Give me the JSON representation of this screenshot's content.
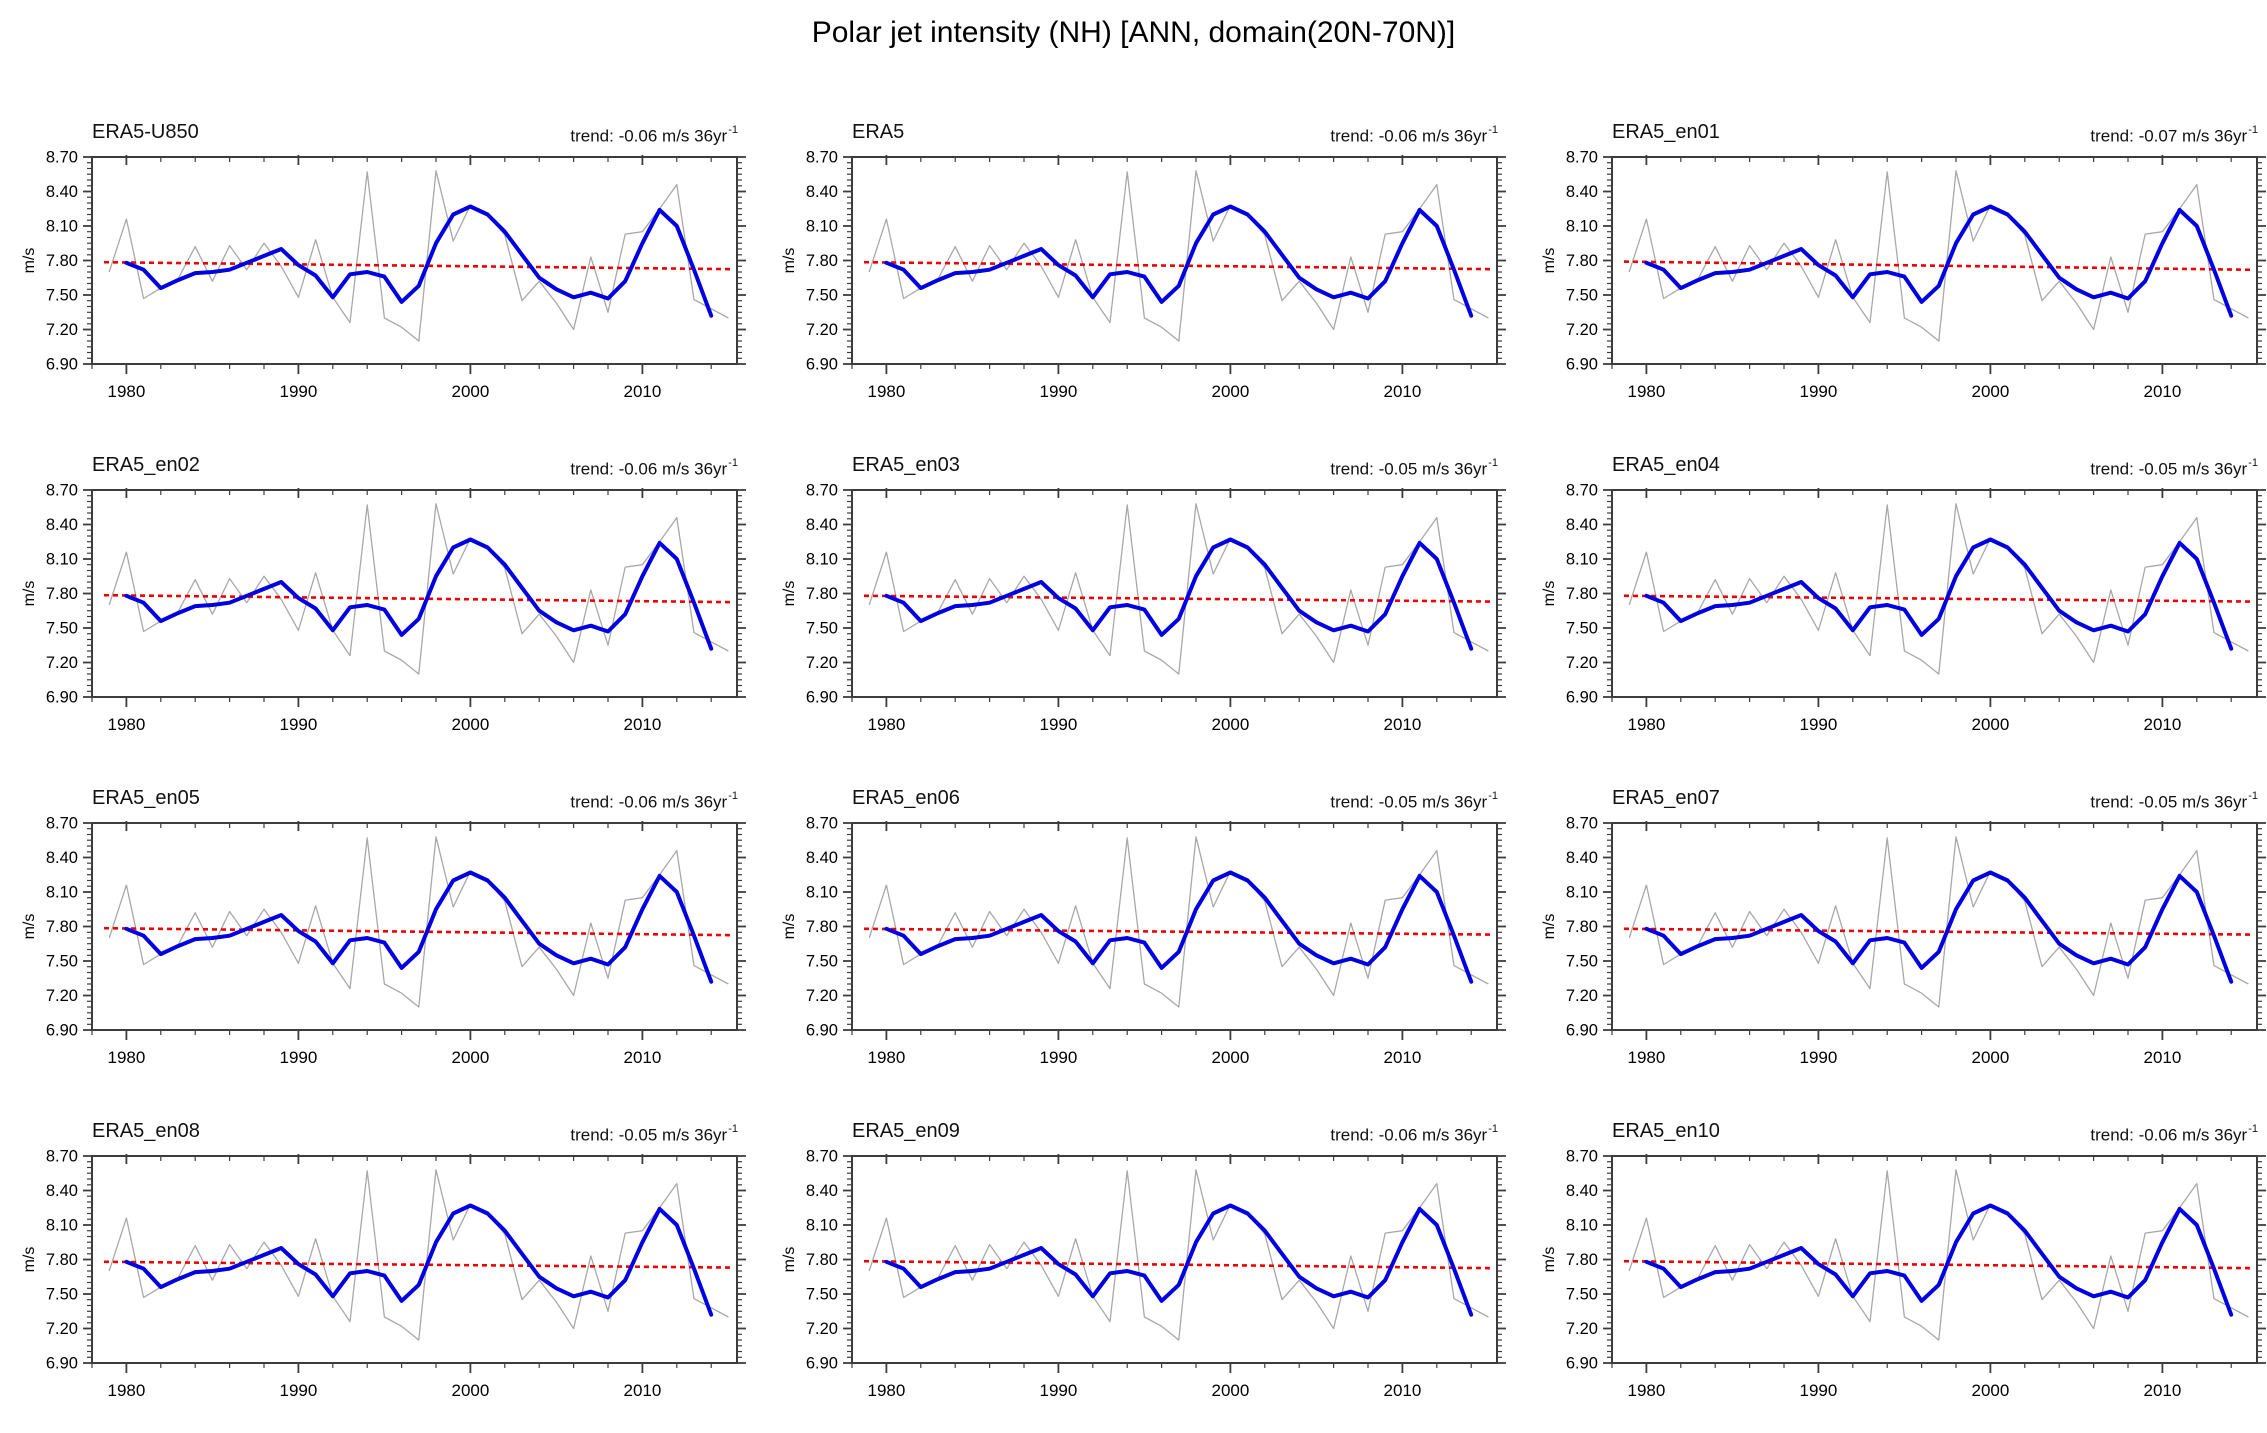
{
  "chart_data": {
    "type": "line",
    "title": "Polar jet intensity (NH) [ANN, domain(20N-70N)]",
    "layout": {
      "rows": 4,
      "cols": 3,
      "grid": "off",
      "legend": "none"
    },
    "trend_sup": "-1",
    "axes": {
      "ylabel": "m/s",
      "ylim": [
        6.9,
        8.7
      ],
      "yticks": [
        6.9,
        7.2,
        7.5,
        7.8,
        8.1,
        8.4,
        8.7
      ],
      "ytick_labels": [
        "6.90",
        "7.20",
        "7.50",
        "7.80",
        "8.10",
        "8.40",
        "8.70"
      ],
      "y_minor_step": 0.05,
      "xlim": [
        1978,
        2015.5
      ],
      "xticks": [
        1980,
        1990,
        2000,
        2010
      ],
      "xtick_labels": [
        "1980",
        "1990",
        "2000",
        "2010"
      ],
      "x_minor_step": 2
    },
    "colors": {
      "annual_line": "#a8a8a8",
      "smoothed_line": "#0000e0",
      "trend_line": "#ee0000",
      "axis": "#3c3c3c",
      "text": "#000000"
    },
    "years": [
      1979,
      1980,
      1981,
      1982,
      1983,
      1984,
      1985,
      1986,
      1987,
      1988,
      1989,
      1990,
      1991,
      1992,
      1993,
      1994,
      1995,
      1996,
      1997,
      1998,
      1999,
      2000,
      2001,
      2002,
      2003,
      2004,
      2005,
      2006,
      2007,
      2008,
      2009,
      2010,
      2011,
      2012,
      2013,
      2014,
      2015
    ],
    "annual": [
      7.7,
      8.16,
      7.47,
      7.56,
      7.64,
      7.92,
      7.62,
      7.93,
      7.72,
      7.95,
      7.75,
      7.48,
      7.98,
      7.48,
      7.26,
      8.57,
      7.3,
      7.22,
      7.1,
      8.58,
      7.97,
      8.28,
      8.2,
      8.02,
      7.45,
      7.62,
      7.43,
      7.2,
      7.83,
      7.35,
      8.03,
      8.05,
      8.25,
      8.46,
      7.46,
      7.38,
      7.3
    ],
    "smoothed_years": [
      1980,
      1981,
      1982,
      1983,
      1984,
      1985,
      1986,
      1987,
      1988,
      1989,
      1990,
      1991,
      1992,
      1993,
      1994,
      1995,
      1996,
      1997,
      1998,
      1999,
      2000,
      2001,
      2002,
      2003,
      2004,
      2005,
      2006,
      2007,
      2008,
      2009,
      2010,
      2011,
      2012,
      2013,
      2014
    ],
    "smoothed": [
      7.78,
      7.72,
      7.56,
      7.63,
      7.69,
      7.7,
      7.72,
      7.78,
      7.84,
      7.9,
      7.76,
      7.67,
      7.48,
      7.68,
      7.7,
      7.66,
      7.44,
      7.58,
      7.95,
      8.2,
      8.27,
      8.2,
      8.05,
      7.85,
      7.65,
      7.55,
      7.48,
      7.52,
      7.47,
      7.62,
      7.95,
      8.24,
      8.1,
      7.72,
      7.32
    ],
    "trend_reference": {
      "mid_year": 1997,
      "mid_value": 7.755,
      "span_years": 36,
      "line_start_year": 1978.7,
      "line_end_year": 2015.3
    },
    "panels": [
      {
        "label": "ERA5-U850",
        "trend_prefix": "trend: -0.06 m/s 36yr",
        "trend": -0.06
      },
      {
        "label": "ERA5",
        "trend_prefix": "trend: -0.06 m/s 36yr",
        "trend": -0.06
      },
      {
        "label": "ERA5_en01",
        "trend_prefix": "trend: -0.07 m/s 36yr",
        "trend": -0.07
      },
      {
        "label": "ERA5_en02",
        "trend_prefix": "trend: -0.06 m/s 36yr",
        "trend": -0.06
      },
      {
        "label": "ERA5_en03",
        "trend_prefix": "trend: -0.05 m/s 36yr",
        "trend": -0.05
      },
      {
        "label": "ERA5_en04",
        "trend_prefix": "trend: -0.05 m/s 36yr",
        "trend": -0.05
      },
      {
        "label": "ERA5_en05",
        "trend_prefix": "trend: -0.06 m/s 36yr",
        "trend": -0.06
      },
      {
        "label": "ERA5_en06",
        "trend_prefix": "trend: -0.05 m/s 36yr",
        "trend": -0.05
      },
      {
        "label": "ERA5_en07",
        "trend_prefix": "trend: -0.05 m/s 36yr",
        "trend": -0.05
      },
      {
        "label": "ERA5_en08",
        "trend_prefix": "trend: -0.05 m/s 36yr",
        "trend": -0.05
      },
      {
        "label": "ERA5_en09",
        "trend_prefix": "trend: -0.06 m/s 36yr",
        "trend": -0.06
      },
      {
        "label": "ERA5_en10",
        "trend_prefix": "trend: -0.06 m/s 36yr",
        "trend": -0.06
      }
    ]
  }
}
